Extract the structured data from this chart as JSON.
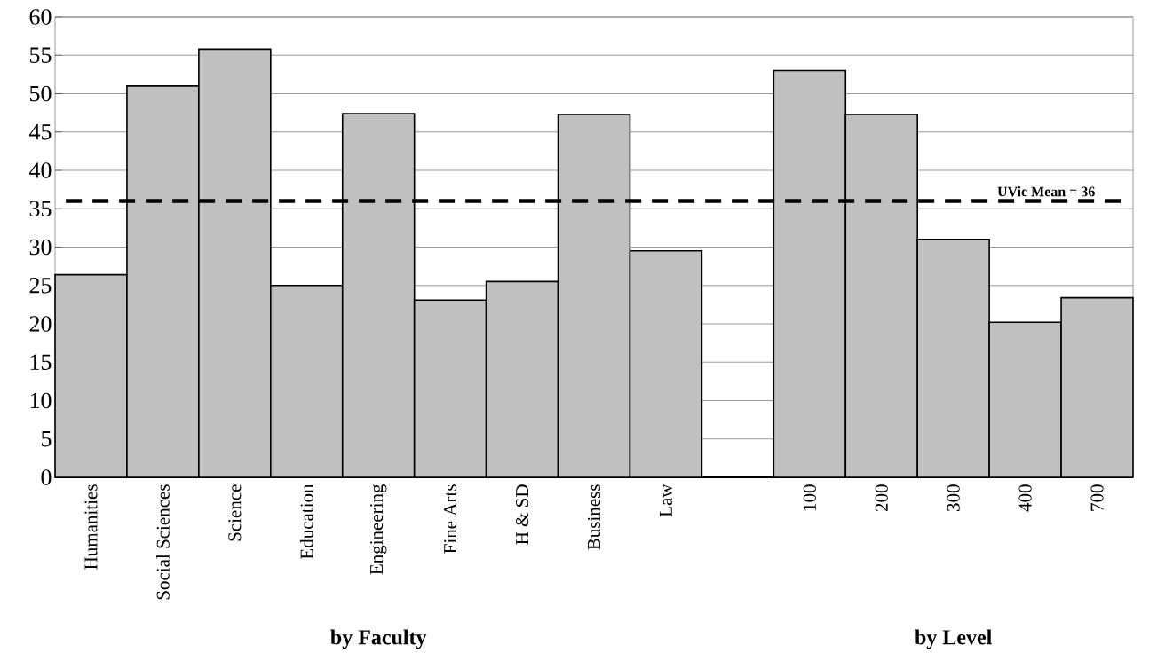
{
  "chart_data": {
    "type": "bar",
    "categories": [
      "Humanities",
      "Social Sciences",
      "Science",
      "Education",
      "Engineering",
      "Fine Arts",
      "H & SD",
      "Business",
      "Law",
      null,
      "100",
      "200",
      "300",
      "400",
      "700"
    ],
    "values": [
      26.4,
      51,
      55.8,
      25,
      47.4,
      23.1,
      25.5,
      47.3,
      29.5,
      null,
      53,
      47.3,
      31,
      20.2,
      23.4
    ],
    "color": "#c0c0c0",
    "ylim": [
      0,
      60
    ],
    "yticks": [
      0,
      5,
      10,
      15,
      20,
      25,
      30,
      35,
      40,
      45,
      50,
      55,
      60
    ],
    "grid": "y",
    "ref_lines": [
      {
        "axis": "y",
        "value": 36,
        "label": "UVic Mean = 36",
        "color": "#000000",
        "line_style": "dashed"
      }
    ],
    "annotations": [
      "by Faculty",
      "by Level"
    ]
  }
}
